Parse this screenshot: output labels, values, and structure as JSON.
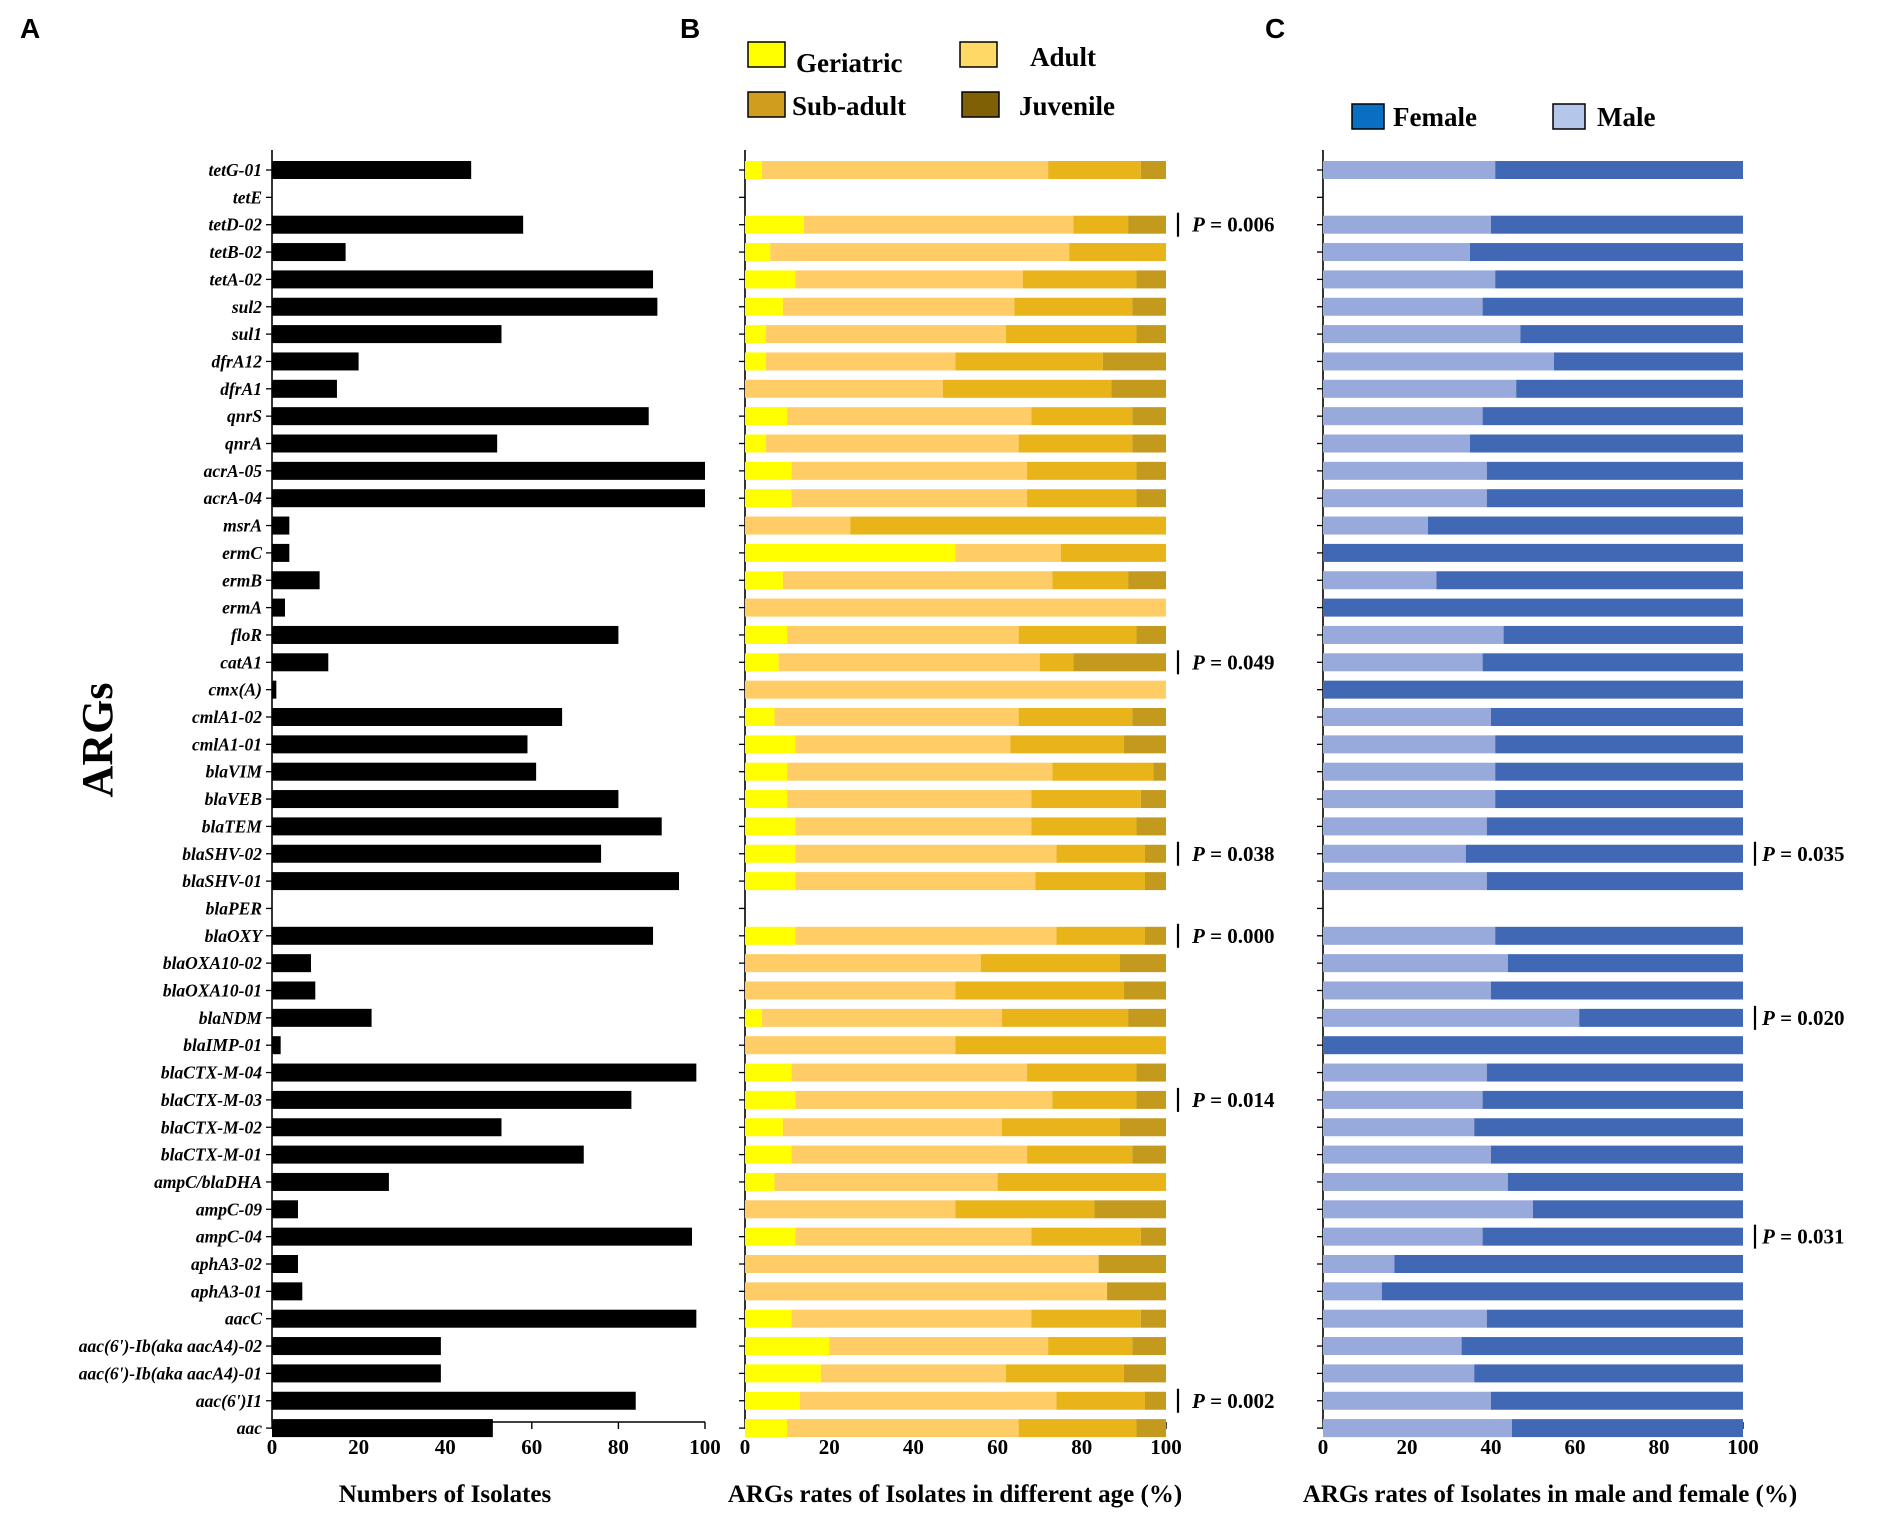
{
  "chart_data": [
    {
      "panel": "A",
      "type": "bar",
      "orientation": "horizontal",
      "ylabel": "ARGs",
      "xlabel": "Numbers of Isolates",
      "xlim": [
        0,
        100
      ],
      "xticks": [
        0,
        20,
        40,
        60,
        80,
        100
      ],
      "categories": [
        "tetG-01",
        "tetE",
        "tetD-02",
        "tetB-02",
        "tetA-02",
        "sul2",
        "sul1",
        "dfrA12",
        "dfrA1",
        "qnrS",
        "qnrA",
        "acrA-05",
        "acrA-04",
        "msrA",
        "ermC",
        "ermB",
        "ermA",
        "floR",
        "catA1",
        "cmx(A)",
        "cmlA1-02",
        "cmlA1-01",
        "blaVIM",
        "blaVEB",
        "blaTEM",
        "blaSHV-02",
        "blaSHV-01",
        "blaPER",
        "blaOXY",
        "blaOXA10-02",
        "blaOXA10-01",
        "blaNDM",
        "blaIMP-01",
        "blaCTX-M-04",
        "blaCTX-M-03",
        "blaCTX-M-02",
        "blaCTX-M-01",
        "ampC/blaDHA",
        "ampC-09",
        "ampC-04",
        "aphA3-02",
        "aphA3-01",
        "aacC",
        "aac(6')-Ib(aka aacA4)-02",
        "aac(6')-Ib(aka aacA4)-01",
        "aac(6')I1",
        "aac"
      ],
      "values": [
        46,
        0,
        58,
        17,
        88,
        89,
        53,
        20,
        15,
        87,
        52,
        100,
        100,
        4,
        4,
        11,
        3,
        80,
        13,
        1,
        67,
        59,
        61,
        80,
        90,
        76,
        94,
        0,
        88,
        9,
        10,
        23,
        2,
        98,
        83,
        53,
        72,
        27,
        6,
        97,
        6,
        7,
        98,
        39,
        39,
        84,
        51
      ]
    },
    {
      "panel": "B",
      "type": "bar",
      "orientation": "horizontal",
      "stacked": true,
      "xlabel": "ARGs rates of Isolates in  different age (%)",
      "xlim": [
        0,
        100
      ],
      "xticks": [
        0,
        20,
        40,
        60,
        80,
        100
      ],
      "legend": [
        "Geriatric",
        "Adult",
        "Sub-adult",
        "Juvenile"
      ],
      "legend_location": "top",
      "series": [
        {
          "name": "Geriatric",
          "color": "#ffff00",
          "values": [
            4,
            null,
            14,
            6,
            12,
            9,
            5,
            5,
            0,
            10,
            5,
            11,
            11,
            0,
            50,
            9,
            0,
            10,
            8,
            0,
            7,
            12,
            10,
            10,
            12,
            12,
            12,
            null,
            12,
            0,
            0,
            4,
            0,
            11,
            12,
            9,
            11,
            7,
            0,
            12,
            0,
            0,
            11,
            20,
            18,
            13,
            10
          ]
        },
        {
          "name": "Adult",
          "color": "#ffcc66",
          "values": [
            68,
            null,
            64,
            71,
            54,
            55,
            57,
            45,
            47,
            58,
            60,
            56,
            56,
            25,
            25,
            64,
            100,
            55,
            62,
            100,
            58,
            51,
            63,
            58,
            56,
            62,
            57,
            null,
            62,
            56,
            50,
            57,
            50,
            56,
            61,
            52,
            56,
            53,
            50,
            56,
            84,
            86,
            57,
            52,
            44,
            61,
            55
          ]
        },
        {
          "name": "Sub-adult",
          "color": "#e9b419",
          "values": [
            22,
            null,
            13,
            23,
            27,
            28,
            31,
            35,
            40,
            24,
            27,
            26,
            26,
            75,
            25,
            18,
            0,
            28,
            8,
            0,
            27,
            27,
            24,
            26,
            25,
            21,
            26,
            null,
            21,
            33,
            40,
            30,
            50,
            26,
            20,
            28,
            25,
            40,
            33,
            26,
            0,
            0,
            26,
            20,
            28,
            21,
            28
          ]
        },
        {
          "name": "Juvenile",
          "color": "#c49a1e",
          "values": [
            6,
            null,
            9,
            0,
            7,
            8,
            7,
            15,
            13,
            8,
            8,
            7,
            7,
            0,
            0,
            9,
            0,
            7,
            22,
            0,
            8,
            10,
            3,
            6,
            7,
            5,
            5,
            null,
            5,
            11,
            10,
            9,
            0,
            7,
            7,
            11,
            8,
            0,
            17,
            6,
            16,
            14,
            6,
            8,
            10,
            5,
            7
          ]
        }
      ],
      "annotations": [
        {
          "row": "tetD-02",
          "text": "= 0.006"
        },
        {
          "row": "catA1",
          "text": "= 0.049"
        },
        {
          "row": "blaSHV-02",
          "text": "= 0.038"
        },
        {
          "row": "blaOXY",
          "text": "= 0.000"
        },
        {
          "row": "blaCTX-M-03",
          "text": "= 0.014"
        },
        {
          "row": "aac(6')I1",
          "text": "= 0.002"
        }
      ]
    },
    {
      "panel": "C",
      "type": "bar",
      "orientation": "horizontal",
      "stacked": true,
      "xlabel": "ARGs rates of Isolates in  male and female (%)",
      "xlim": [
        0,
        100
      ],
      "xticks": [
        0,
        20,
        40,
        60,
        80,
        100
      ],
      "legend": [
        "Female",
        "Male"
      ],
      "legend_location": "top",
      "series": [
        {
          "name": "Male",
          "color": "#98a9db",
          "values": [
            41,
            null,
            40,
            35,
            41,
            38,
            47,
            55,
            46,
            38,
            35,
            39,
            39,
            25,
            0,
            27,
            0,
            43,
            38,
            0,
            40,
            41,
            41,
            41,
            39,
            34,
            39,
            null,
            41,
            44,
            40,
            61,
            0,
            39,
            38,
            36,
            40,
            44,
            50,
            38,
            17,
            14,
            39,
            33,
            36,
            40,
            45
          ]
        },
        {
          "name": "Female",
          "color": "#4168b4",
          "values": [
            59,
            null,
            60,
            65,
            59,
            62,
            53,
            45,
            54,
            62,
            65,
            61,
            61,
            75,
            100,
            73,
            100,
            57,
            62,
            100,
            60,
            59,
            59,
            59,
            61,
            66,
            61,
            null,
            59,
            56,
            60,
            39,
            100,
            61,
            62,
            64,
            60,
            56,
            50,
            62,
            83,
            86,
            61,
            67,
            64,
            60,
            55
          ]
        }
      ],
      "annotations": [
        {
          "row": "blaSHV-02",
          "text": "= 0.035"
        },
        {
          "row": "blaNDM",
          "text": "= 0.020"
        },
        {
          "row": "ampC-04",
          "text": "= 0.031"
        }
      ]
    }
  ],
  "labels": {
    "panel_a": "A",
    "panel_b": "B",
    "panel_c": "C",
    "p_letter": "P",
    "legend_b": {
      "geriatric": "Geriatric",
      "adult": "Adult",
      "subadult": "Sub-adult",
      "juvenile": "Juvenile"
    },
    "legend_c": {
      "female": "Female",
      "male": "Male"
    },
    "legend_c_colors": {
      "female": "#0a6fc2",
      "male": "#b4c6ea"
    },
    "legend_b_colors": {
      "geriatric": "#ffff00",
      "adult": "#ffd966",
      "subadult": "#d19d1f",
      "juvenile": "#7f6005"
    }
  }
}
